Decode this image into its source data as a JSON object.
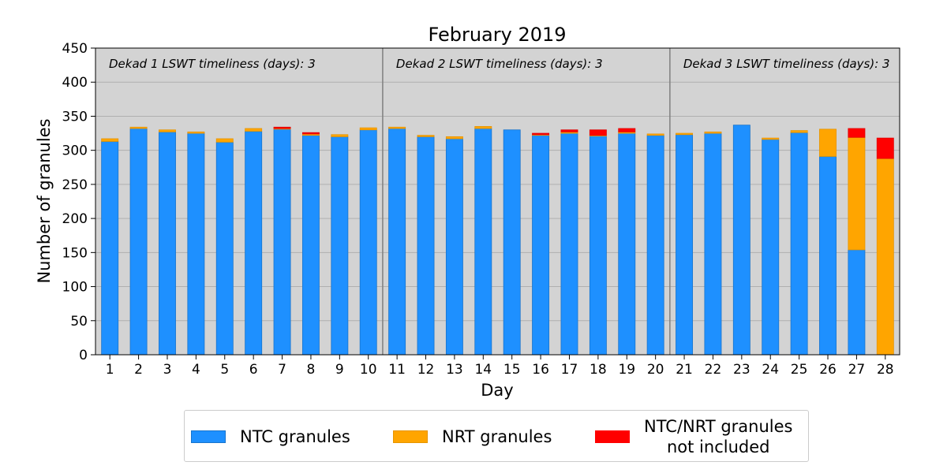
{
  "chart_data": {
    "type": "bar",
    "stacked": true,
    "title": "February 2019",
    "xlabel": "Day",
    "ylabel": "Number of granules",
    "ylim": [
      0,
      450
    ],
    "yticks": [
      0,
      50,
      100,
      150,
      200,
      250,
      300,
      350,
      400,
      450
    ],
    "grid": true,
    "categories": [
      "1",
      "2",
      "3",
      "4",
      "5",
      "6",
      "7",
      "8",
      "9",
      "10",
      "11",
      "12",
      "13",
      "14",
      "15",
      "16",
      "17",
      "18",
      "19",
      "20",
      "21",
      "22",
      "23",
      "24",
      "25",
      "26",
      "27",
      "28"
    ],
    "series": [
      {
        "name": "NTC granules",
        "color": "#1e90ff",
        "values": [
          313,
          332,
          327,
          325,
          312,
          328,
          331,
          322,
          320,
          330,
          332,
          320,
          317,
          332,
          330,
          322,
          325,
          321,
          325,
          322,
          323,
          325,
          337,
          316,
          326,
          291,
          154,
          0
        ]
      },
      {
        "name": "NRT granules",
        "color": "#ffa500",
        "values": [
          4,
          2,
          3,
          2,
          5,
          4,
          1,
          2,
          3,
          3,
          2,
          2,
          3,
          3,
          0,
          1,
          2,
          1,
          2,
          2,
          2,
          2,
          0,
          2,
          3,
          40,
          165,
          288
        ]
      },
      {
        "name": "NTC/NRT granules\n  not included",
        "color": "#ff0000",
        "values": [
          0,
          0,
          0,
          0,
          0,
          0,
          2,
          2,
          0,
          0,
          0,
          0,
          0,
          0,
          0,
          2,
          3,
          8,
          5,
          0,
          0,
          0,
          0,
          0,
          0,
          0,
          13,
          30
        ]
      }
    ],
    "annotations": [
      {
        "text": "Dekad 1 LSWT timeliness (days): 3"
      },
      {
        "text": "Dekad 2 LSWT timeliness (days): 3"
      },
      {
        "text": "Dekad 3 LSWT timeliness (days): 3"
      }
    ],
    "dekad_dividers_after_day": [
      10,
      20
    ],
    "legend_position": "bottom"
  }
}
